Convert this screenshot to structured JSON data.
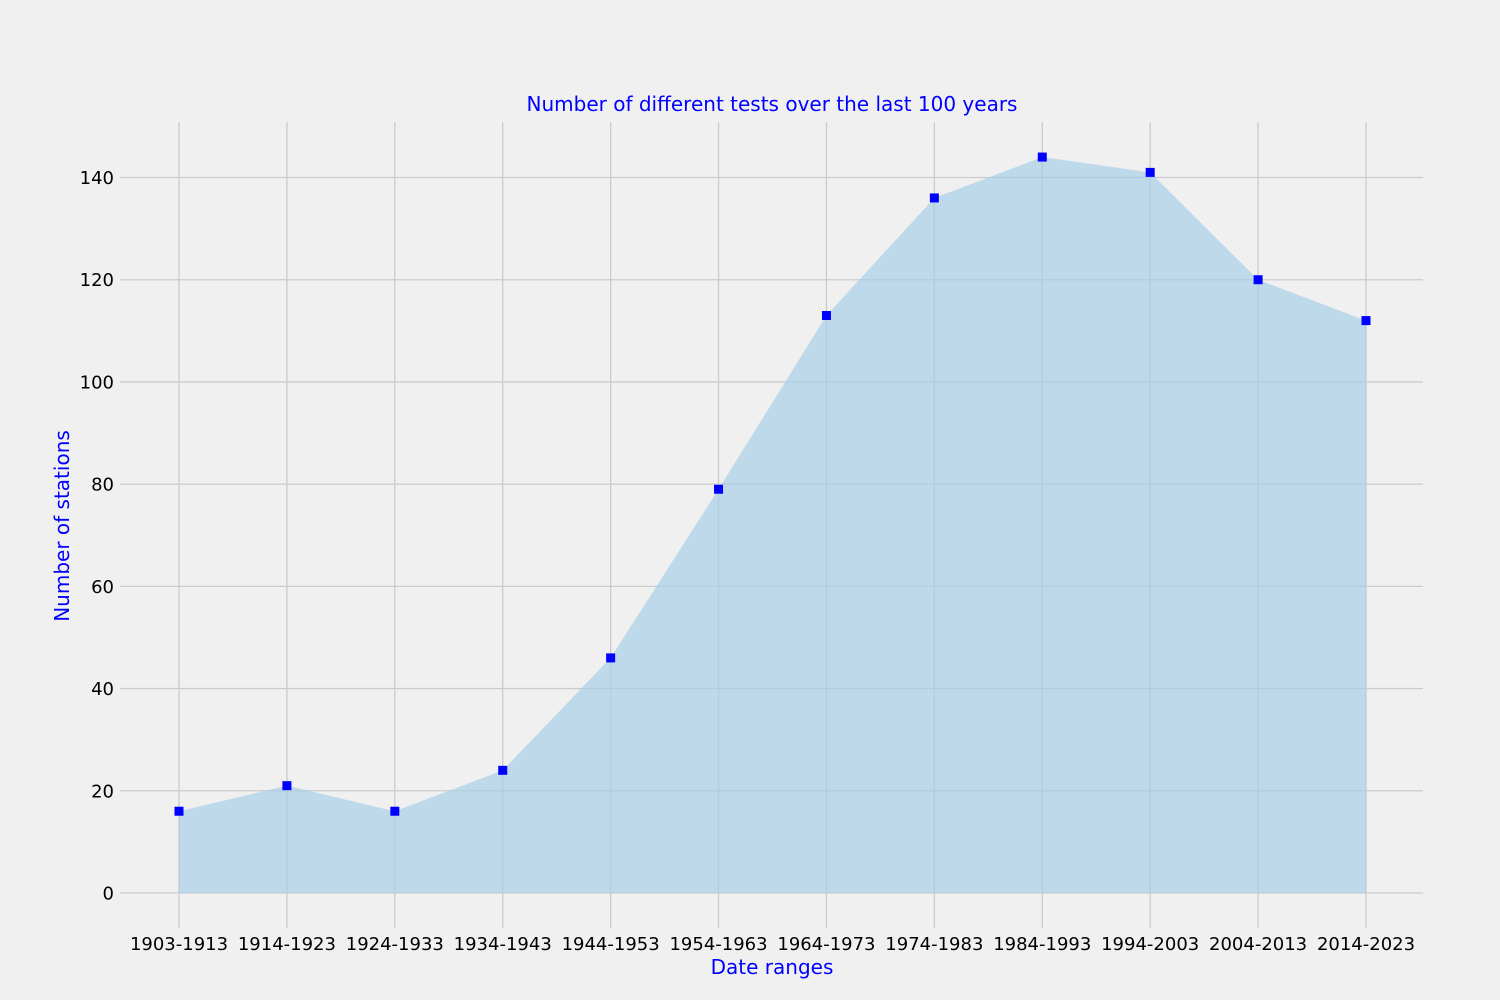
{
  "chart_data": {
    "type": "area",
    "title": "Number of different tests over the last 100 years",
    "xlabel": "Date ranges",
    "ylabel": "Number of stations",
    "categories": [
      "1903-1913",
      "1914-1923",
      "1924-1933",
      "1934-1943",
      "1944-1953",
      "1954-1963",
      "1964-1973",
      "1974-1983",
      "1984-1993",
      "1994-2003",
      "2004-2013",
      "2014-2023"
    ],
    "values": [
      16,
      21,
      16,
      24,
      46,
      79,
      113,
      136,
      144,
      141,
      120,
      112
    ],
    "yticks": [
      0,
      20,
      40,
      60,
      80,
      100,
      120,
      140
    ],
    "ylim": [
      -7.4,
      151.4
    ],
    "grid": true,
    "legend": "none",
    "marker": "square",
    "colors": {
      "fill": "#a6cfe6",
      "marker": "#0000ff",
      "title": "#0000ff",
      "background": "#f0f0f0",
      "grid": "#cbcbcb"
    }
  }
}
